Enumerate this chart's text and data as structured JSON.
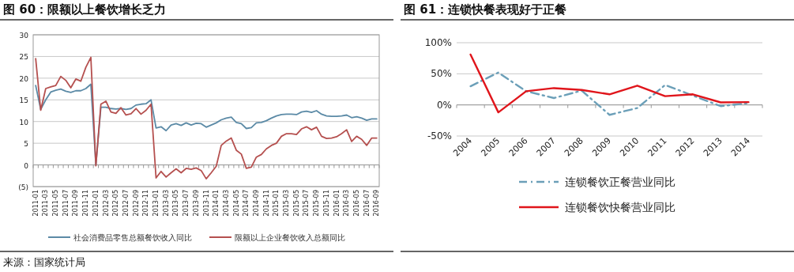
{
  "chart_data": [
    {
      "type": "line",
      "title": "图 60：限额以上餐饮增长乏力",
      "categories": [
        "2011-01",
        null,
        "2011-03",
        null,
        "2011-05",
        null,
        "2011-07",
        null,
        "2011-09",
        null,
        "2011-11",
        null,
        "2012-01",
        null,
        "2012-03",
        null,
        "2012-05",
        null,
        "2012-07",
        null,
        "2012-09",
        null,
        "2012-11",
        null,
        "2013-01",
        null,
        "2013-03",
        null,
        "2013-05",
        null,
        "2013-07",
        null,
        "2013-09",
        null,
        "2013-11",
        null,
        "2014-01",
        null,
        "2014-03",
        null,
        "2014-05",
        null,
        "2014-07",
        null,
        "2014-09",
        null,
        "2014-11",
        null,
        "2015-01",
        null,
        "2015-03",
        null,
        "2015-05",
        null,
        "2015-07",
        null,
        "2015-09",
        null,
        "2015-11",
        null,
        "2016-01",
        null,
        "2016-03",
        null,
        "2016-05",
        null,
        "2016-07",
        null,
        "2016-09"
      ],
      "series": [
        {
          "name": "社会消费品零售总额餐饮收入同比",
          "color": "#5b8aa6",
          "values": [
            18.3,
            12.8,
            15.0,
            16.8,
            17.2,
            17.5,
            17.0,
            16.7,
            17.1,
            17.1,
            17.6,
            18.6,
            0,
            13.3,
            13.3,
            13.0,
            12.9,
            13.0,
            12.8,
            13.0,
            13.8,
            14.0,
            14.1,
            15.0,
            8.5,
            8.8,
            7.9,
            9.2,
            9.5,
            9.1,
            9.7,
            9.2,
            9.6,
            9.5,
            8.7,
            9.2,
            9.7,
            10.4,
            10.8,
            11.0,
            9.8,
            9.5,
            8.4,
            8.6,
            9.7,
            9.8,
            10.2,
            10.8,
            11.3,
            11.6,
            11.7,
            11.7,
            11.6,
            12.2,
            12.4,
            12.1,
            12.5,
            11.7,
            11.3,
            11.2,
            11.2,
            11.3,
            11.5,
            10.9,
            11.1,
            10.8,
            10.3,
            10.6,
            10.6
          ]
        },
        {
          "name": "限额以上企业餐饮收入总额同比",
          "color": "#b5504f",
          "values": [
            24.5,
            12.6,
            17.6,
            18.0,
            18.3,
            20.4,
            19.5,
            17.8,
            19.8,
            19.3,
            22.5,
            24.8,
            -0.2,
            14.0,
            14.7,
            12.2,
            11.9,
            13.2,
            11.5,
            11.8,
            13.0,
            11.7,
            12.6,
            14.0,
            -3.0,
            -1.5,
            -2.8,
            -1.8,
            -0.9,
            -1.8,
            -0.8,
            -1.0,
            -0.7,
            -1.3,
            -3.2,
            -1.8,
            -0.3,
            4.5,
            5.5,
            6.2,
            3.4,
            2.5,
            -0.8,
            -0.5,
            1.8,
            2.4,
            3.7,
            4.5,
            5.0,
            6.6,
            7.2,
            7.2,
            7.0,
            8.3,
            8.8,
            8.1,
            8.7,
            6.6,
            6.1,
            6.2,
            6.5,
            7.2,
            8.1,
            5.4,
            6.6,
            5.9,
            4.5,
            6.2,
            6.2
          ]
        }
      ],
      "ylim": [
        -5,
        30
      ],
      "yticks": [
        {
          "value": -5,
          "label": "(5)"
        },
        0,
        5,
        10,
        15,
        20,
        25,
        30
      ],
      "grid": "y",
      "legend": "bottom",
      "marker": "none",
      "line_style": "solid",
      "annotations": [
        "来源：国家统计局"
      ]
    },
    {
      "type": "line",
      "title": "图 61：连锁快餐表现好于正餐",
      "categories": [
        "2004",
        "2005",
        "2006",
        "2007",
        "2008",
        "2009",
        "2010",
        "2011",
        "2012",
        "2013",
        "2014"
      ],
      "series": [
        {
          "name": "连锁餐饮正餐营业同比",
          "color": "#6b9fb8",
          "line_style": "dashed",
          "values": [
            30,
            52,
            22,
            11,
            23,
            -16,
            -5,
            32,
            15,
            -2,
            3
          ]
        },
        {
          "name": "连锁餐饮快餐营业同比",
          "color": "#e0151b",
          "line_style": "solid",
          "values": [
            81,
            -12,
            22,
            27,
            24,
            17,
            31,
            14,
            17,
            4,
            4.5
          ]
        }
      ],
      "ylim": [
        -50,
        100
      ],
      "yticks": [
        {
          "value": -50,
          "label": "-50%"
        },
        {
          "value": 0,
          "label": "0%"
        },
        {
          "value": 50,
          "label": "50%"
        },
        {
          "value": 100,
          "label": "100%"
        }
      ],
      "grid": "y",
      "legend": "bottom",
      "marker": "none"
    }
  ]
}
